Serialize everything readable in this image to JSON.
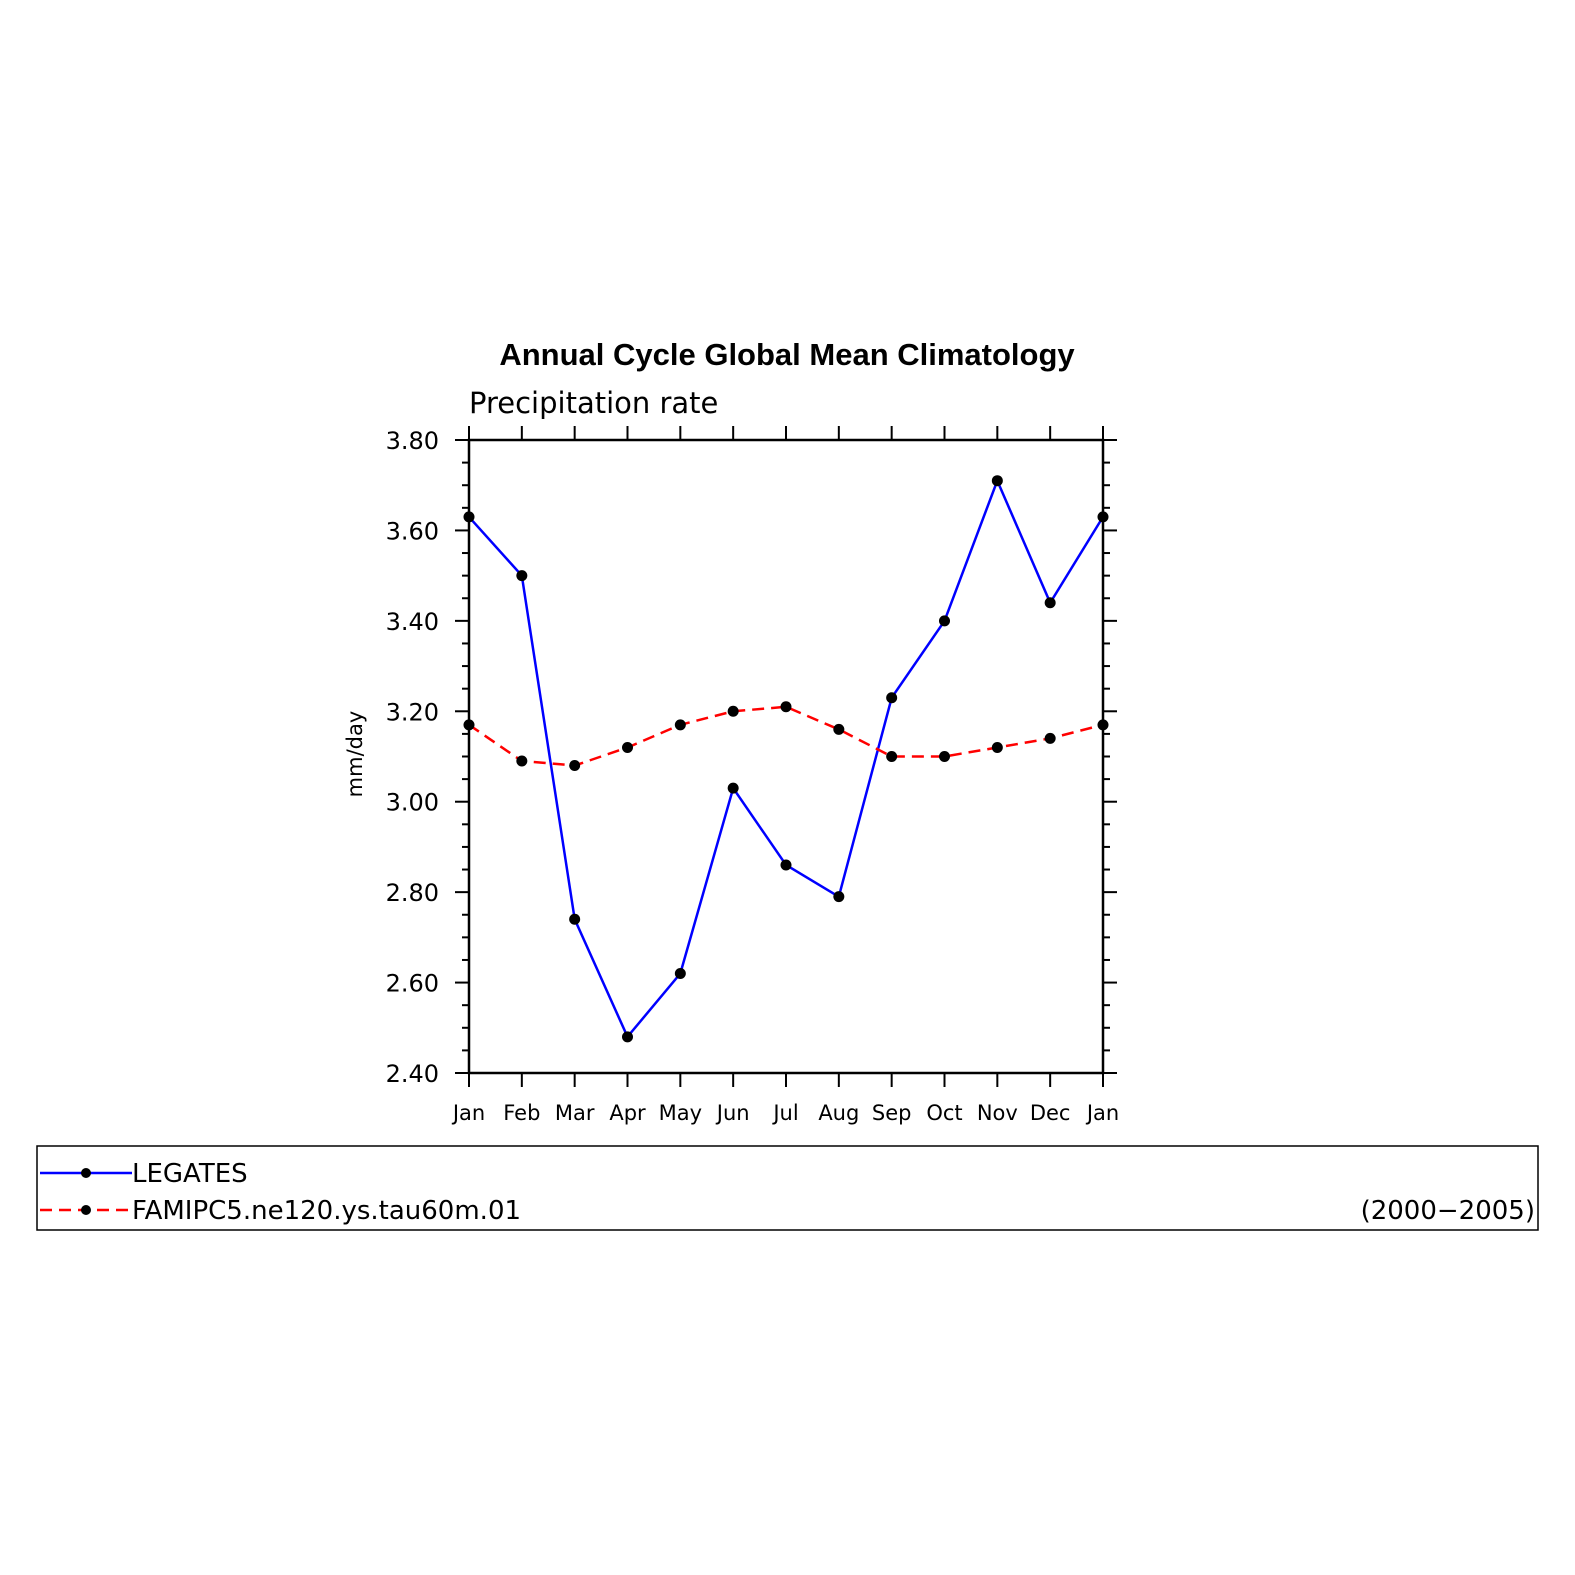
{
  "chart_data": {
    "type": "line",
    "title": "Annual Cycle Global Mean Climatology",
    "subtitle": "Precipitation rate",
    "xlabel": "",
    "ylabel": "mm/day",
    "categories": [
      "Jan",
      "Feb",
      "Mar",
      "Apr",
      "May",
      "Jun",
      "Jul",
      "Aug",
      "Sep",
      "Oct",
      "Nov",
      "Dec",
      "Jan"
    ],
    "ylim": [
      2.4,
      3.8
    ],
    "yticks": [
      "2.40",
      "2.60",
      "2.80",
      "3.00",
      "3.20",
      "3.40",
      "3.60",
      "3.80"
    ],
    "grid": false,
    "legend_position": "bottom",
    "series": [
      {
        "name": "LEGATES",
        "color": "#0000ff",
        "dash": "solid",
        "marker": "dot",
        "values": [
          3.63,
          3.5,
          2.74,
          2.48,
          2.62,
          3.03,
          2.86,
          2.79,
          3.23,
          3.4,
          3.71,
          3.44,
          3.63
        ]
      },
      {
        "name": "FAMIPC5.ne120.ys.tau60m.01",
        "color": "#ff0000",
        "dash": "dashed",
        "marker": "dot",
        "values": [
          3.17,
          3.09,
          3.08,
          3.12,
          3.17,
          3.2,
          3.21,
          3.16,
          3.1,
          3.1,
          3.12,
          3.14,
          3.17
        ]
      }
    ],
    "legend_note": "(2000−2005)"
  }
}
